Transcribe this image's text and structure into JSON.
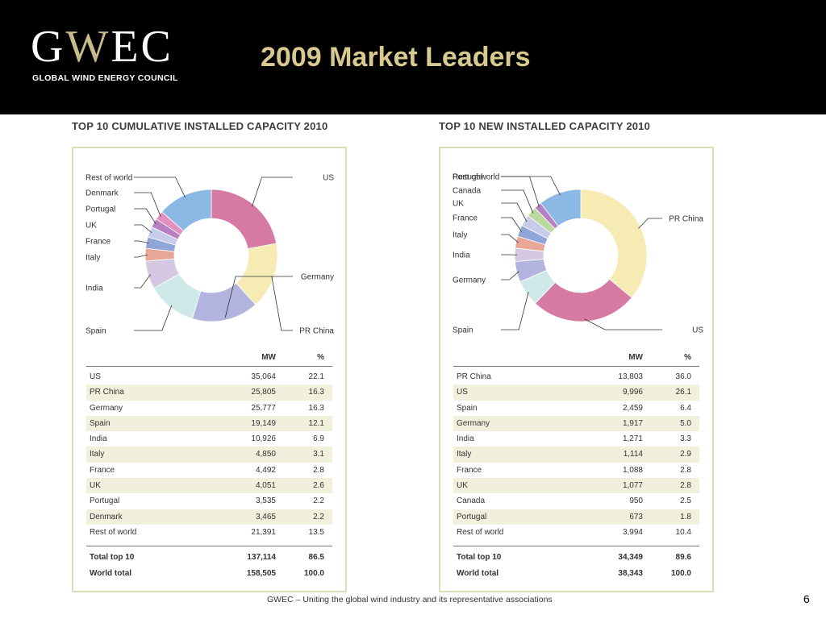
{
  "header": {
    "logo_text_a": "G",
    "logo_text_b": "W",
    "logo_text_c": "EC",
    "logo_subtitle": "GLOBAL WIND ENERGY COUNCIL",
    "title": "2009 Market Leaders"
  },
  "colors": {
    "header_bg": "#000000",
    "title": "#d8c98f",
    "panel_border": "#d9dfb8",
    "row_shade": "#f1f0dc"
  },
  "table_headers": {
    "mw": "MW",
    "pct": "%"
  },
  "chart_data": [
    {
      "type": "pie",
      "title": "TOP 10 CUMULATIVE INSTALLED CAPACITY 2010",
      "categories": [
        "US",
        "PR China",
        "Germany",
        "Spain",
        "India",
        "Italy",
        "France",
        "UK",
        "Portugal",
        "Denmark",
        "Rest of world"
      ],
      "values": [
        22.1,
        16.3,
        16.3,
        12.1,
        6.9,
        3.1,
        2.8,
        2.6,
        2.2,
        2.2,
        13.5
      ],
      "colors": [
        "#d77aa3",
        "#f5ebb3",
        "#b3b3e0",
        "#cfe8e8",
        "#d6c8e3",
        "#e8a796",
        "#8fa6d9",
        "#c8cbeb",
        "#b780c2",
        "#e48fbe",
        "#8cb8e6"
      ],
      "rows": [
        {
          "name": "US",
          "mw": "35,064",
          "pct": "22.1"
        },
        {
          "name": "PR China",
          "mw": "25,805",
          "pct": "16.3"
        },
        {
          "name": "Germany",
          "mw": "25,777",
          "pct": "16.3"
        },
        {
          "name": "Spain",
          "mw": "19,149",
          "pct": "12.1"
        },
        {
          "name": "India",
          "mw": "10,926",
          "pct": "6.9"
        },
        {
          "name": "Italy",
          "mw": "4,850",
          "pct": "3.1"
        },
        {
          "name": "France",
          "mw": "4,492",
          "pct": "2.8"
        },
        {
          "name": "UK",
          "mw": "4,051",
          "pct": "2.6"
        },
        {
          "name": "Portugal",
          "mw": "3,535",
          "pct": "2.2"
        },
        {
          "name": "Denmark",
          "mw": "3,465",
          "pct": "2.2"
        },
        {
          "name": "Rest of world",
          "mw": "21,391",
          "pct": "13.5"
        }
      ],
      "totals": [
        {
          "name": "Total top 10",
          "mw": "137,114",
          "pct": "86.5"
        },
        {
          "name": "World total",
          "mw": "158,505",
          "pct": "100.0"
        }
      ]
    },
    {
      "type": "pie",
      "title": "TOP 10 NEW INSTALLED CAPACITY 2010",
      "categories": [
        "PR China",
        "US",
        "Spain",
        "Germany",
        "India",
        "Italy",
        "France",
        "UK",
        "Canada",
        "Portugal",
        "Rest of world"
      ],
      "values": [
        36.0,
        26.1,
        6.4,
        5.0,
        3.3,
        2.9,
        2.8,
        2.8,
        2.5,
        1.8,
        10.4
      ],
      "colors": [
        "#f5ebb3",
        "#d77aa3",
        "#cfe8e8",
        "#b3b3e0",
        "#d6c8e3",
        "#e8a796",
        "#8fa6d9",
        "#c8cbeb",
        "#bcd9a0",
        "#b780c2",
        "#8cb8e6"
      ],
      "rows": [
        {
          "name": "PR China",
          "mw": "13,803",
          "pct": "36.0"
        },
        {
          "name": "US",
          "mw": "9,996",
          "pct": "26.1"
        },
        {
          "name": "Spain",
          "mw": "2,459",
          "pct": "6.4"
        },
        {
          "name": "Germany",
          "mw": "1,917",
          "pct": "5.0"
        },
        {
          "name": "India",
          "mw": "1,271",
          "pct": "3.3"
        },
        {
          "name": "Italy",
          "mw": "1,114",
          "pct": "2.9"
        },
        {
          "name": "France",
          "mw": "1,088",
          "pct": "2.8"
        },
        {
          "name": "UK",
          "mw": "1,077",
          "pct": "2.8"
        },
        {
          "name": "Canada",
          "mw": "950",
          "pct": "2.5"
        },
        {
          "name": "Portugal",
          "mw": "673",
          "pct": "1.8"
        },
        {
          "name": "Rest of world",
          "mw": "3,994",
          "pct": "10.4"
        }
      ],
      "totals": [
        {
          "name": "Total top 10",
          "mw": "34,349",
          "pct": "89.6"
        },
        {
          "name": "World total",
          "mw": "38,343",
          "pct": "100.0"
        }
      ]
    }
  ],
  "footer": {
    "text": "GWEC – Uniting the global wind industry and its representative associations",
    "page": "6"
  }
}
